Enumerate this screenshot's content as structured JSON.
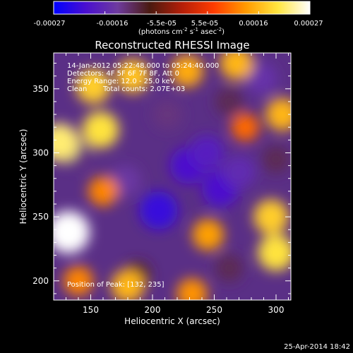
{
  "chart_data": {
    "type": "heatmap",
    "title": "Reconstructed RHESSI Image",
    "xlabel": "Heliocentric X (arcsec)",
    "ylabel": "Heliocentric Y (arcsec)",
    "xlim": [
      120,
      312
    ],
    "ylim": [
      185,
      378
    ],
    "x_ticks": [
      150,
      200,
      250,
      300
    ],
    "y_ticks": [
      200,
      250,
      300,
      350
    ],
    "colorbar": {
      "ticks": [
        "-0.00027",
        "-0.00016",
        "-5.5e-05",
        "5.5e-05",
        "0.00016",
        "0.00027"
      ],
      "range": [
        -0.00027,
        0.00027
      ],
      "unit_text": "(photons cm",
      "unit_exp1": "-2",
      "unit_mid": " s",
      "unit_exp2": "-1",
      "unit_end": " asec",
      "unit_exp3": "-2",
      "unit_close": ")",
      "colors": [
        "#0000ff",
        "#4a0fd0",
        "#6e3b9e",
        "#4a1a10",
        "#b41e08",
        "#ff3c00",
        "#ff9a00",
        "#ffe640",
        "#ffffff"
      ]
    },
    "annotations": {
      "time_range": "14-Jan-2012 05:22:48.000 to 05:24:40.000",
      "detectors": "Detectors: 4F 5F 6F 7F 8F, Att 0",
      "energy": "Energy Range: 12.0 - 25.0 keV",
      "method": "Clean",
      "counts": "Total counts: 2.07E+03",
      "peak": "Position of Peak: [132, 235]"
    },
    "footer_date": "25-Apr-2014 18:42",
    "blobs": [
      {
        "x": 229,
        "y": 290,
        "value": -0.0002
      },
      {
        "x": 244,
        "y": 300,
        "value": -0.00018
      },
      {
        "x": 205,
        "y": 255,
        "value": -0.00022
      },
      {
        "x": 255,
        "y": 272,
        "value": -0.0002
      },
      {
        "x": 288,
        "y": 358,
        "value": -0.00015
      },
      {
        "x": 270,
        "y": 285,
        "value": -0.00016
      },
      {
        "x": 138,
        "y": 300,
        "value": -0.00012
      },
      {
        "x": 178,
        "y": 278,
        "value": -0.00014
      },
      {
        "x": 300,
        "y": 295,
        "value": -0.0001
      },
      {
        "x": 212,
        "y": 330,
        "value": -0.00012
      },
      {
        "x": 262,
        "y": 340,
        "value": -0.0001
      },
      {
        "x": 188,
        "y": 205,
        "value": -8e-05
      },
      {
        "x": 262,
        "y": 210,
        "value": -0.0001
      },
      {
        "x": 132,
        "y": 238,
        "value": 0.00027
      },
      {
        "x": 125,
        "y": 308,
        "value": 0.00022
      },
      {
        "x": 158,
        "y": 318,
        "value": 0.0002
      },
      {
        "x": 152,
        "y": 352,
        "value": 0.00018
      },
      {
        "x": 184,
        "y": 360,
        "value": 0.00017
      },
      {
        "x": 228,
        "y": 364,
        "value": 0.00015
      },
      {
        "x": 268,
        "y": 370,
        "value": 0.00016
      },
      {
        "x": 305,
        "y": 330,
        "value": 0.00016
      },
      {
        "x": 296,
        "y": 250,
        "value": 0.00018
      },
      {
        "x": 300,
        "y": 222,
        "value": 0.0002
      },
      {
        "x": 245,
        "y": 236,
        "value": 0.00014
      },
      {
        "x": 160,
        "y": 270,
        "value": 0.00012
      },
      {
        "x": 180,
        "y": 196,
        "value": 0.00016
      },
      {
        "x": 232,
        "y": 190,
        "value": 0.00013
      },
      {
        "x": 140,
        "y": 200,
        "value": 0.00012
      },
      {
        "x": 275,
        "y": 320,
        "value": 0.0001
      }
    ]
  }
}
